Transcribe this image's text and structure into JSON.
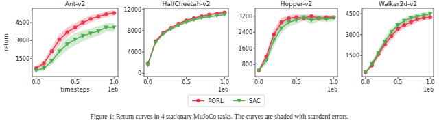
{
  "caption": "Figure 1: Return curves in 4 stationary MuJoCo tasks. The curves are shaded with standard errors.",
  "chart_data": [
    {
      "type": "line",
      "title": "Ant-v2",
      "xlabel": "timesteps",
      "ylabel": "return",
      "annotations": [
        "1e6"
      ],
      "grid": false,
      "legend": "bottom",
      "x": [
        0,
        0.1,
        0.2,
        0.3,
        0.4,
        0.5,
        0.6,
        0.7,
        0.8,
        0.9,
        1.0
      ],
      "xlim": [
        -0.05,
        1.05
      ],
      "xticks": [
        {
          "value": 0,
          "label": "0.0"
        },
        {
          "value": 0.5,
          "label": "0.5"
        },
        {
          "value": 1.0,
          "label": "1.0"
        }
      ],
      "ylim": [
        0,
        5700
      ],
      "yticks": [
        1500,
        3000,
        4500
      ],
      "series": [
        {
          "name": "PORL",
          "color": "#e8384f",
          "marker": "circle",
          "line_style": "solid",
          "values": [
            700,
            1100,
            2100,
            3100,
            3700,
            4100,
            4500,
            4800,
            5000,
            5200,
            5300
          ],
          "errors": [
            150,
            250,
            400,
            450,
            400,
            350,
            300,
            300,
            250,
            250,
            250
          ]
        },
        {
          "name": "SAC",
          "color": "#4caf50",
          "marker": "triangle_down",
          "line_style": "solid",
          "values": [
            500,
            700,
            1300,
            2100,
            2700,
            3100,
            3400,
            3600,
            3800,
            4100,
            4100
          ],
          "errors": [
            100,
            200,
            300,
            450,
            500,
            500,
            450,
            400,
            400,
            350,
            350
          ]
        }
      ]
    },
    {
      "type": "line",
      "title": "HalfCheetah-v2",
      "annotations": [
        "1e6"
      ],
      "grid": false,
      "x": [
        0,
        0.1,
        0.2,
        0.3,
        0.4,
        0.5,
        0.6,
        0.7,
        0.8,
        0.9,
        1.0
      ],
      "xlim": [
        -0.05,
        1.05
      ],
      "xticks": [
        {
          "value": 0,
          "label": "0.0"
        },
        {
          "value": 0.5,
          "label": "0.5"
        },
        {
          "value": 1.0,
          "label": "1.0"
        }
      ],
      "ylim": [
        -600,
        12200
      ],
      "yticks": [
        0,
        4000,
        8000,
        12000
      ],
      "series": [
        {
          "name": "PORL",
          "color": "#e8384f",
          "marker": "circle",
          "line_style": "solid",
          "values": [
            1800,
            6000,
            7600,
            8500,
            9300,
            9900,
            10300,
            10700,
            11000,
            11200,
            11400
          ],
          "errors": [
            200,
            300,
            300,
            250,
            250,
            250,
            250,
            250,
            250,
            250,
            250
          ]
        },
        {
          "name": "SAC",
          "color": "#4caf50",
          "marker": "triangle_down",
          "line_style": "solid",
          "values": [
            1600,
            5800,
            7400,
            8300,
            9000,
            9600,
            10000,
            10400,
            10600,
            10800,
            11000
          ],
          "errors": [
            200,
            300,
            300,
            300,
            300,
            250,
            250,
            250,
            250,
            250,
            250
          ]
        }
      ]
    },
    {
      "type": "line",
      "title": "Hopper-v2",
      "annotations": [
        "1e6"
      ],
      "grid": false,
      "x": [
        0,
        0.1,
        0.2,
        0.3,
        0.4,
        0.5,
        0.6,
        0.7,
        0.8,
        0.9,
        1.0
      ],
      "xlim": [
        -0.05,
        1.05
      ],
      "xticks": [
        {
          "value": 0,
          "label": "0.0"
        },
        {
          "value": 0.5,
          "label": "0.5"
        },
        {
          "value": 1.0,
          "label": "1.0"
        }
      ],
      "ylim": [
        200,
        3600
      ],
      "yticks": [
        800,
        1600,
        2400,
        3200
      ],
      "series": [
        {
          "name": "PORL",
          "color": "#e8384f",
          "marker": "circle",
          "line_style": "solid",
          "values": [
            500,
            1200,
            2300,
            2900,
            3100,
            3150,
            3100,
            3200,
            3100,
            3150,
            3150
          ],
          "errors": [
            50,
            200,
            250,
            200,
            150,
            150,
            150,
            100,
            150,
            100,
            100
          ]
        },
        {
          "name": "SAC",
          "color": "#4caf50",
          "marker": "triangle_down",
          "line_style": "solid",
          "values": [
            500,
            1000,
            2000,
            2600,
            2900,
            3000,
            3150,
            3000,
            3100,
            3050,
            3100
          ],
          "errors": [
            50,
            200,
            300,
            250,
            200,
            200,
            150,
            200,
            150,
            150,
            150
          ]
        }
      ]
    },
    {
      "type": "line",
      "title": "Walker2d-v2",
      "annotations": [
        "1e6"
      ],
      "grid": false,
      "x": [
        0,
        0.1,
        0.2,
        0.3,
        0.4,
        0.5,
        0.6,
        0.7,
        0.8,
        0.9,
        1.0
      ],
      "xlim": [
        -0.05,
        1.05
      ],
      "xticks": [
        {
          "value": 0,
          "label": "0.0"
        },
        {
          "value": 0.5,
          "label": "0.5"
        },
        {
          "value": 1.0,
          "label": "1.0"
        }
      ],
      "ylim": [
        0,
        4900
      ],
      "yticks": [
        1500,
        3000,
        4500
      ],
      "series": [
        {
          "name": "PORL",
          "color": "#e8384f",
          "marker": "circle",
          "line_style": "solid",
          "values": [
            300,
            800,
            1600,
            2300,
            2900,
            3400,
            3700,
            3900,
            4100,
            4200,
            4250
          ],
          "errors": [
            50,
            150,
            250,
            300,
            300,
            250,
            250,
            250,
            200,
            200,
            200
          ]
        },
        {
          "name": "SAC",
          "color": "#4caf50",
          "marker": "triangle_down",
          "line_style": "solid",
          "values": [
            300,
            900,
            1700,
            2500,
            3200,
            3700,
            4000,
            4200,
            4300,
            4400,
            4500
          ],
          "errors": [
            50,
            150,
            250,
            300,
            250,
            250,
            200,
            200,
            200,
            200,
            200
          ]
        }
      ]
    }
  ]
}
